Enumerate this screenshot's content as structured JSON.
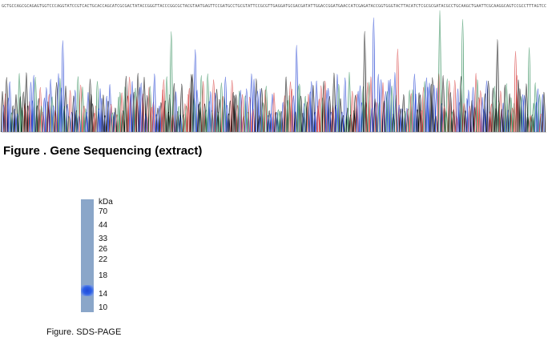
{
  "figure1": {
    "caption": "Figure . Gene Sequencing (extract)",
    "sequence": "GCTGCCAGCGCAGAGTGGTCCCAGGTATCCGTCACTGCACCAGCATCGCGACTATACCGGGTTACCCGGCGCTACGTAATGAGTTCCGATGCCTGCGTATTCCGCGTTGAGGATGCGACGATATTGGACCGGATGAACCATCGAGATACCGGTGGGTACTTACATCTCGCGCGATACGCCTGCAAGCTGAATTCGCAAGGCAGTCCGCCTTTAGTCC",
    "trace_colors": {
      "A": "#2e8b57",
      "C": "#1f3fd1",
      "G": "#000000",
      "T": "#d63b3b"
    }
  },
  "figure2": {
    "caption": "Figure. SDS-PAGE",
    "unit_label": "kDa",
    "markers": [
      "70",
      "44",
      "33",
      "26",
      "22",
      "18",
      "14",
      "10"
    ],
    "lane_color": "#8aa6c9",
    "band_color": "#1f49d8"
  }
}
